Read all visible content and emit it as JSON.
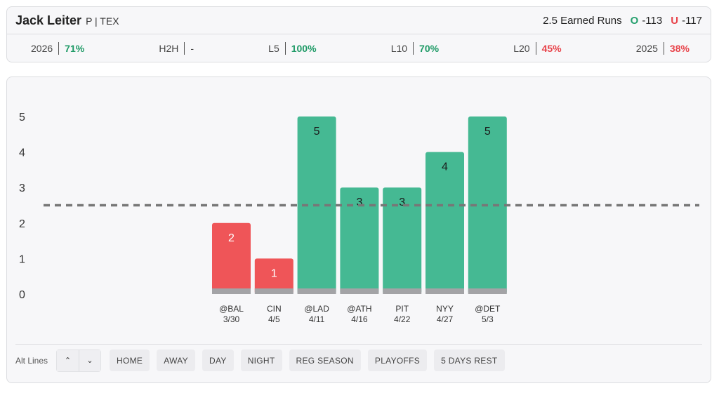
{
  "header": {
    "player_name": "Jack Leiter",
    "position_team": "P | TEX",
    "prop_label": "2.5 Earned Runs",
    "over": {
      "letter": "O",
      "odds": "-113"
    },
    "under": {
      "letter": "U",
      "odds": "-117"
    }
  },
  "stats": [
    {
      "label": "2026",
      "value": "71%",
      "status": "good"
    },
    {
      "label": "H2H",
      "value": "-",
      "status": "neutral"
    },
    {
      "label": "L5",
      "value": "100%",
      "status": "good"
    },
    {
      "label": "L10",
      "value": "70%",
      "status": "good"
    },
    {
      "label": "L20",
      "value": "45%",
      "status": "bad"
    },
    {
      "label": "2025",
      "value": "38%",
      "status": "bad"
    }
  ],
  "colors": {
    "over": "#45b993",
    "under": "#ef5558",
    "base": "#a3a3a6",
    "line": "#777777"
  },
  "chart_data": {
    "type": "bar",
    "categories": [
      "@BAL",
      "CIN",
      "@LAD",
      "@ATH",
      "PIT",
      "NYY",
      "@DET"
    ],
    "dates": [
      "3/30",
      "4/5",
      "4/11",
      "4/16",
      "4/22",
      "4/27",
      "5/3"
    ],
    "values": [
      2,
      1,
      5,
      3,
      3,
      4,
      5
    ],
    "line": 2.5,
    "yticks": [
      0,
      1,
      2,
      3,
      4,
      5
    ],
    "ylim": [
      0,
      5
    ],
    "grid": false,
    "title": "",
    "xlabel": "",
    "ylabel": ""
  },
  "filters": {
    "alt_lines_label": "Alt Lines",
    "up_icon": "chevron-up-icon",
    "down_icon": "chevron-down-icon",
    "chips": [
      "HOME",
      "AWAY",
      "DAY",
      "NIGHT",
      "REG SEASON",
      "PLAYOFFS",
      "5 DAYS REST"
    ]
  }
}
